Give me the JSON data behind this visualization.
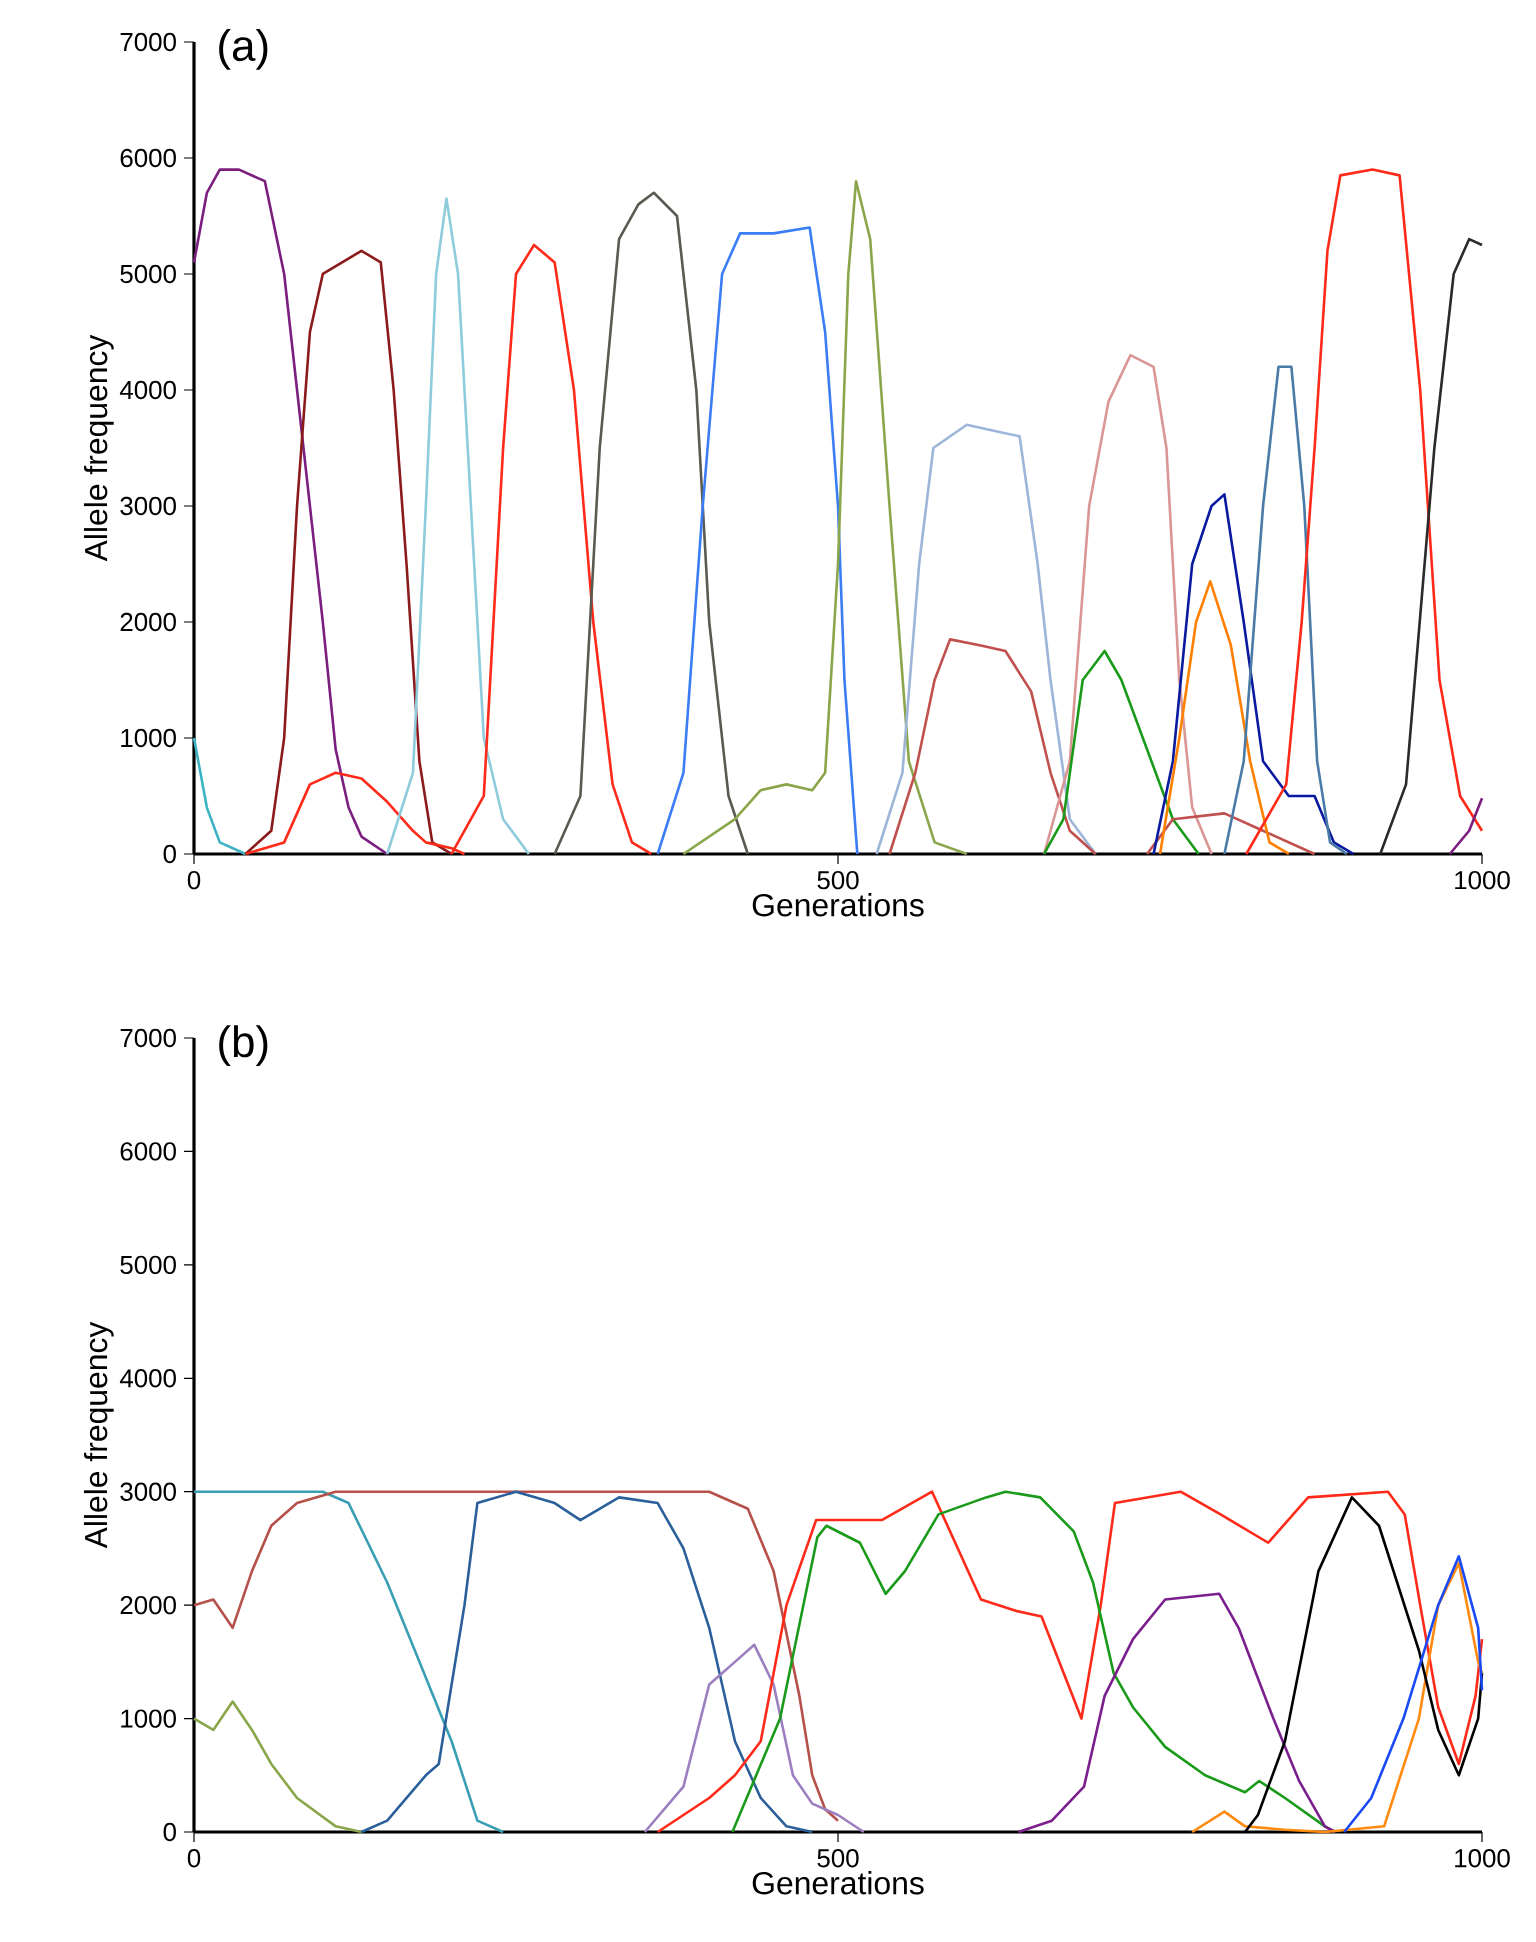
{
  "chart_data": [
    {
      "type": "line",
      "title": "(a)",
      "xlabel": "Generations",
      "ylabel": "Allele frequency",
      "xlim": [
        0,
        1000
      ],
      "ylim": [
        0,
        7000
      ],
      "xticks": [
        0,
        500,
        1000
      ],
      "yticks": [
        0,
        1000,
        2000,
        3000,
        4000,
        5000,
        6000,
        7000
      ],
      "grid": false,
      "series": [
        {
          "color": "#3bb3c3",
          "x": [
            0,
            10,
            20,
            40
          ],
          "values": [
            1000,
            400,
            100,
            0
          ]
        },
        {
          "color": "#7b1f7e",
          "x": [
            0,
            10,
            20,
            35,
            55,
            70,
            80,
            90,
            100,
            110,
            120,
            130,
            150
          ],
          "values": [
            5100,
            5700,
            5900,
            5900,
            5800,
            5000,
            4000,
            3000,
            2000,
            900,
            400,
            150,
            0
          ]
        },
        {
          "color": "#8b1a1a",
          "x": [
            40,
            60,
            70,
            80,
            90,
            100,
            115,
            130,
            145,
            155,
            165,
            175,
            185,
            200
          ],
          "values": [
            0,
            200,
            1000,
            3000,
            4500,
            5000,
            5100,
            5200,
            5100,
            4000,
            2500,
            800,
            100,
            0
          ]
        },
        {
          "color": "#ff2a1a",
          "x": [
            40,
            70,
            90,
            110,
            130,
            150,
            170,
            180,
            200,
            210
          ],
          "values": [
            0,
            100,
            600,
            700,
            650,
            450,
            200,
            100,
            50,
            0
          ]
        },
        {
          "color": "#8ecbdc",
          "x": [
            150,
            170,
            180,
            188,
            196,
            205,
            215,
            225,
            240,
            260
          ],
          "values": [
            0,
            700,
            3000,
            5000,
            5650,
            5000,
            3000,
            1000,
            300,
            0
          ]
        },
        {
          "color": "#ff2a1a",
          "x": [
            200,
            225,
            240,
            250,
            264,
            280,
            295,
            310,
            325,
            340,
            355
          ],
          "values": [
            0,
            500,
            3500,
            5000,
            5250,
            5100,
            4000,
            2000,
            600,
            100,
            0
          ]
        },
        {
          "color": "#5a5a50",
          "x": [
            280,
            300,
            315,
            330,
            345,
            357,
            375,
            390,
            400,
            415,
            430
          ],
          "values": [
            0,
            500,
            3500,
            5300,
            5600,
            5700,
            5500,
            4000,
            2000,
            500,
            0
          ]
        },
        {
          "color": "#3a7df5",
          "x": [
            360,
            380,
            395,
            410,
            424,
            450,
            478,
            490,
            500,
            505,
            515
          ],
          "values": [
            0,
            700,
            3000,
            5000,
            5350,
            5350,
            5400,
            4500,
            3000,
            1500,
            0
          ]
        },
        {
          "color": "#8aa64a",
          "x": [
            380,
            420,
            440,
            460,
            480,
            490,
            500,
            508,
            514,
            525,
            540,
            555,
            575,
            600
          ],
          "values": [
            0,
            300,
            550,
            600,
            550,
            700,
            2500,
            5000,
            5800,
            5300,
            3000,
            800,
            100,
            0
          ]
        },
        {
          "color": "#9db5d8",
          "x": [
            530,
            550,
            563,
            574,
            600,
            620,
            641,
            655,
            665,
            680,
            700
          ],
          "values": [
            0,
            700,
            2500,
            3500,
            3700,
            3650,
            3600,
            2500,
            1500,
            300,
            0
          ]
        },
        {
          "color": "#c0504d",
          "x": [
            540,
            560,
            575,
            587,
            610,
            630,
            650,
            665,
            680,
            700
          ],
          "values": [
            0,
            700,
            1500,
            1850,
            1800,
            1750,
            1400,
            700,
            200,
            0
          ]
        },
        {
          "color": "#d99694",
          "x": [
            660,
            680,
            695,
            710,
            727,
            745,
            755,
            765,
            775,
            790
          ],
          "values": [
            0,
            800,
            3000,
            3900,
            4300,
            4200,
            3500,
            1500,
            400,
            0
          ]
        },
        {
          "color": "#1a9a1a",
          "x": [
            660,
            675,
            690,
            707,
            720,
            740,
            760,
            780
          ],
          "values": [
            0,
            300,
            1500,
            1750,
            1500,
            900,
            300,
            0
          ]
        },
        {
          "color": "#c0504d",
          "x": [
            740,
            760,
            800,
            830,
            870
          ],
          "values": [
            0,
            300,
            350,
            200,
            0
          ]
        },
        {
          "color": "#0a1aa0",
          "x": [
            745,
            760,
            775,
            790,
            800,
            815,
            830,
            850,
            870,
            885,
            900
          ],
          "values": [
            0,
            800,
            2500,
            3000,
            3100,
            2000,
            800,
            500,
            500,
            100,
            0
          ]
        },
        {
          "color": "#ff8000",
          "x": [
            750,
            765,
            778,
            789,
            805,
            820,
            835,
            850
          ],
          "values": [
            0,
            1000,
            2000,
            2350,
            1800,
            800,
            100,
            0
          ]
        },
        {
          "color": "#4a7aa8",
          "x": [
            800,
            815,
            830,
            842,
            852,
            862,
            872,
            882,
            895
          ],
          "values": [
            0,
            800,
            3000,
            4200,
            4200,
            3000,
            800,
            100,
            0
          ]
        },
        {
          "color": "#ff2a1a",
          "x": [
            817,
            848,
            860,
            870,
            880,
            890,
            915,
            936,
            952,
            967,
            983,
            1000
          ],
          "values": [
            0,
            600,
            2000,
            3500,
            5200,
            5850,
            5900,
            5850,
            4000,
            1500,
            500,
            200
          ]
        },
        {
          "color": "#2a2a2a",
          "x": [
            921,
            941,
            963,
            978,
            990,
            1000
          ],
          "values": [
            0,
            600,
            3500,
            5000,
            5300,
            5250
          ]
        },
        {
          "color": "#7b1f7e",
          "x": [
            975,
            990,
            1000
          ],
          "values": [
            0,
            200,
            480
          ]
        }
      ]
    },
    {
      "type": "line",
      "title": "(b)",
      "xlabel": "Generations",
      "ylabel": "Allele frequency",
      "xlim": [
        0,
        1000
      ],
      "ylim": [
        0,
        7000
      ],
      "xticks": [
        0,
        500,
        1000
      ],
      "yticks": [
        0,
        1000,
        2000,
        3000,
        4000,
        5000,
        6000,
        7000
      ],
      "grid": false,
      "series": [
        {
          "color": "#3a9eb5",
          "x": [
            0,
            100,
            120,
            150,
            175,
            200,
            220,
            240
          ],
          "values": [
            3000,
            3000,
            2900,
            2200,
            1500,
            800,
            100,
            0
          ]
        },
        {
          "color": "#b5514a",
          "x": [
            0,
            15,
            30,
            45,
            60,
            80,
            110,
            300,
            400,
            430,
            450,
            470,
            480,
            490,
            500
          ],
          "values": [
            2000,
            2050,
            1800,
            2300,
            2700,
            2900,
            3000,
            3000,
            3000,
            2850,
            2300,
            1200,
            500,
            200,
            100
          ]
        },
        {
          "color": "#8aa64a",
          "x": [
            0,
            15,
            30,
            45,
            60,
            80,
            110,
            130
          ],
          "values": [
            1000,
            900,
            1150,
            900,
            600,
            300,
            50,
            0
          ]
        },
        {
          "color": "#2a5f9a",
          "x": [
            130,
            150,
            180,
            190,
            210,
            220,
            250,
            280,
            300,
            330,
            360,
            380,
            400,
            420,
            440,
            460,
            480
          ],
          "values": [
            0,
            100,
            500,
            600,
            2000,
            2900,
            3000,
            2900,
            2750,
            2950,
            2900,
            2500,
            1800,
            800,
            300,
            50,
            0
          ]
        },
        {
          "color": "#9b7fc0",
          "x": [
            350,
            380,
            400,
            420,
            435,
            450,
            465,
            480,
            500,
            520
          ],
          "values": [
            0,
            400,
            1300,
            1500,
            1650,
            1300,
            500,
            250,
            150,
            0
          ]
        },
        {
          "color": "#ff2a1a",
          "x": [
            360,
            400,
            420,
            440,
            460,
            483,
            534,
            573,
            611,
            638,
            658,
            689,
            704,
            715,
            766,
            797,
            834,
            865,
            927,
            940,
            952,
            966,
            982,
            995,
            1000
          ],
          "values": [
            0,
            300,
            500,
            800,
            2000,
            2750,
            2750,
            3000,
            2050,
            1950,
            1900,
            1000,
            2000,
            2900,
            3000,
            2800,
            2550,
            2950,
            3000,
            2800,
            2000,
            1100,
            600,
            1200,
            1700
          ]
        },
        {
          "color": "#1a9a1a",
          "x": [
            418,
            455,
            484,
            491,
            517,
            537,
            552,
            578,
            615,
            630,
            657,
            683,
            698,
            714,
            729,
            754,
            785,
            816,
            827,
            847,
            878,
            886
          ],
          "values": [
            0,
            1000,
            2600,
            2700,
            2550,
            2100,
            2300,
            2800,
            2950,
            3000,
            2950,
            2650,
            2200,
            1400,
            1100,
            750,
            500,
            350,
            450,
            300,
            50,
            0
          ]
        },
        {
          "color": "#7b1f8e",
          "x": [
            640,
            666,
            691,
            707,
            729,
            754,
            796,
            811,
            838,
            858,
            878,
            886
          ],
          "values": [
            0,
            100,
            400,
            1200,
            1700,
            2050,
            2100,
            1800,
            1000,
            450,
            50,
            0
          ]
        },
        {
          "color": "#ff8a10",
          "x": [
            775,
            800,
            816,
            847,
            878,
            924,
            951,
            966,
            982,
            997,
            1000
          ],
          "values": [
            0,
            180,
            50,
            20,
            0,
            50,
            1000,
            2000,
            2370,
            1500,
            1400
          ]
        },
        {
          "color": "#000000",
          "x": [
            816,
            826,
            847,
            873,
            899,
            920,
            951,
            966,
            982,
            997,
            1000
          ],
          "values": [
            0,
            150,
            800,
            2300,
            2950,
            2700,
            1600,
            900,
            500,
            1000,
            1400
          ]
        },
        {
          "color": "#1a4af5",
          "x": [
            893,
            914,
            939,
            966,
            982,
            997,
            1000
          ],
          "values": [
            0,
            300,
            1000,
            2000,
            2430,
            1800,
            1250
          ]
        }
      ]
    }
  ]
}
